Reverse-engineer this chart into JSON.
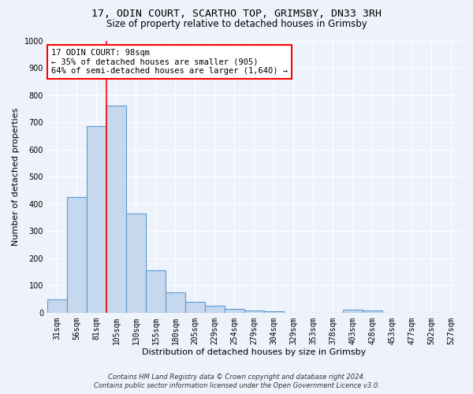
{
  "title_line1": "17, ODIN COURT, SCARTHO TOP, GRIMSBY, DN33 3RH",
  "title_line2": "Size of property relative to detached houses in Grimsby",
  "xlabel": "Distribution of detached houses by size in Grimsby",
  "ylabel": "Number of detached properties",
  "footer_line1": "Contains HM Land Registry data © Crown copyright and database right 2024.",
  "footer_line2": "Contains public sector information licensed under the Open Government Licence v3.0.",
  "bar_labels": [
    "31sqm",
    "56sqm",
    "81sqm",
    "105sqm",
    "130sqm",
    "155sqm",
    "180sqm",
    "205sqm",
    "229sqm",
    "254sqm",
    "279sqm",
    "304sqm",
    "329sqm",
    "353sqm",
    "378sqm",
    "403sqm",
    "428sqm",
    "453sqm",
    "477sqm",
    "502sqm",
    "527sqm"
  ],
  "bar_values": [
    50,
    425,
    685,
    760,
    365,
    155,
    75,
    40,
    27,
    15,
    8,
    5,
    0,
    0,
    0,
    10,
    8,
    0,
    0,
    0,
    0
  ],
  "bar_color": "#c5d8ed",
  "bar_edge_color": "#5b9bd5",
  "vline_x_index": 3,
  "vline_color": "red",
  "annotation_line1": "17 ODIN COURT: 98sqm",
  "annotation_line2": "← 35% of detached houses are smaller (905)",
  "annotation_line3": "64% of semi-detached houses are larger (1,640) →",
  "annotation_box_color": "white",
  "annotation_box_edge_color": "red",
  "ylim": [
    0,
    1000
  ],
  "yticks": [
    0,
    100,
    200,
    300,
    400,
    500,
    600,
    700,
    800,
    900,
    1000
  ],
  "background_color": "#eef2fa",
  "grid_color": "white",
  "title_fontsize": 9.5,
  "subtitle_fontsize": 8.5,
  "axis_label_fontsize": 8,
  "tick_fontsize": 7,
  "annotation_fontsize": 7.5,
  "footer_fontsize": 6
}
